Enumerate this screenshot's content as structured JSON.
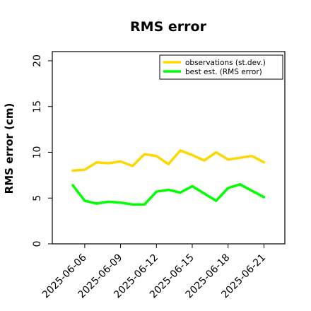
{
  "chart_data": {
    "type": "line",
    "title": "RMS error",
    "xlabel": "",
    "ylabel": "RMS error (cm)",
    "ylim": [
      0,
      21
    ],
    "yticks": [
      0,
      5,
      10,
      15,
      20
    ],
    "xticks": [
      {
        "label": "2025-06-06",
        "color": "#000000"
      },
      {
        "label": "2025-06-09",
        "color": "#000000"
      },
      {
        "label": "2025-06-12",
        "color": "#228B22"
      },
      {
        "label": "2025-06-15",
        "color": "#000000"
      },
      {
        "label": "2025-06-18",
        "color": "#000000"
      },
      {
        "label": "2025-06-21",
        "color": "#000000"
      }
    ],
    "x": [
      "2025-06-05",
      "2025-06-06",
      "2025-06-07",
      "2025-06-08",
      "2025-06-09",
      "2025-06-10",
      "2025-06-11",
      "2025-06-12",
      "2025-06-13",
      "2025-06-14",
      "2025-06-15",
      "2025-06-16",
      "2025-06-17",
      "2025-06-18",
      "2025-06-19",
      "2025-06-20",
      "2025-06-21"
    ],
    "series": [
      {
        "name": "observations (st.dev.)",
        "color": "#FFD700",
        "values": [
          8.0,
          8.1,
          8.9,
          8.8,
          9.0,
          8.5,
          9.8,
          9.6,
          8.7,
          10.2,
          9.7,
          9.1,
          10.0,
          9.2,
          9.4,
          9.6,
          8.9
        ]
      },
      {
        "name": "best est. (RMS error)",
        "color": "#00FF00",
        "values": [
          6.4,
          4.7,
          4.4,
          4.6,
          4.5,
          4.3,
          4.3,
          5.7,
          5.9,
          5.6,
          6.3,
          5.5,
          4.7,
          6.1,
          6.5,
          5.8,
          5.1
        ]
      }
    ],
    "grid": false,
    "legend": "top-right"
  }
}
